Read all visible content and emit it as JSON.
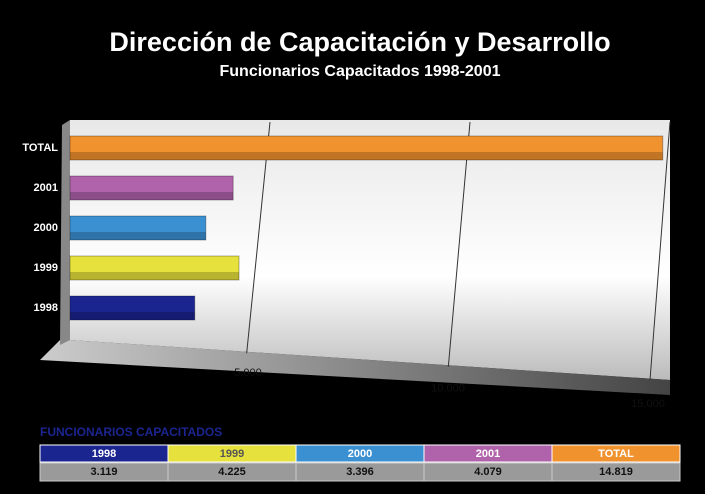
{
  "chart_data": {
    "type": "bar",
    "orientation": "horizontal",
    "title": "Dirección de Capacitación y Desarrollo",
    "subtitle": "Funcionarios Capacitados 1998-2001",
    "categories": [
      "1998",
      "1999",
      "2000",
      "2001",
      "TOTAL"
    ],
    "values": [
      3119,
      4225,
      3396,
      4079,
      14819
    ],
    "value_labels": [
      "3.119",
      "4.225",
      "3.396",
      "4.079",
      "14.819"
    ],
    "colors": [
      "#1b2590",
      "#e6e13c",
      "#3b90d2",
      "#b062ab",
      "#f0922e"
    ],
    "xlim": [
      0,
      15000
    ],
    "xticks": [
      {
        "value": 5000,
        "label": "5.000"
      },
      {
        "value": 10000,
        "label": "10.000"
      },
      {
        "value": 15000,
        "label": "15.000"
      }
    ],
    "grid": true,
    "table_title": "FUNCIONARIOS CAPACITADOS"
  }
}
